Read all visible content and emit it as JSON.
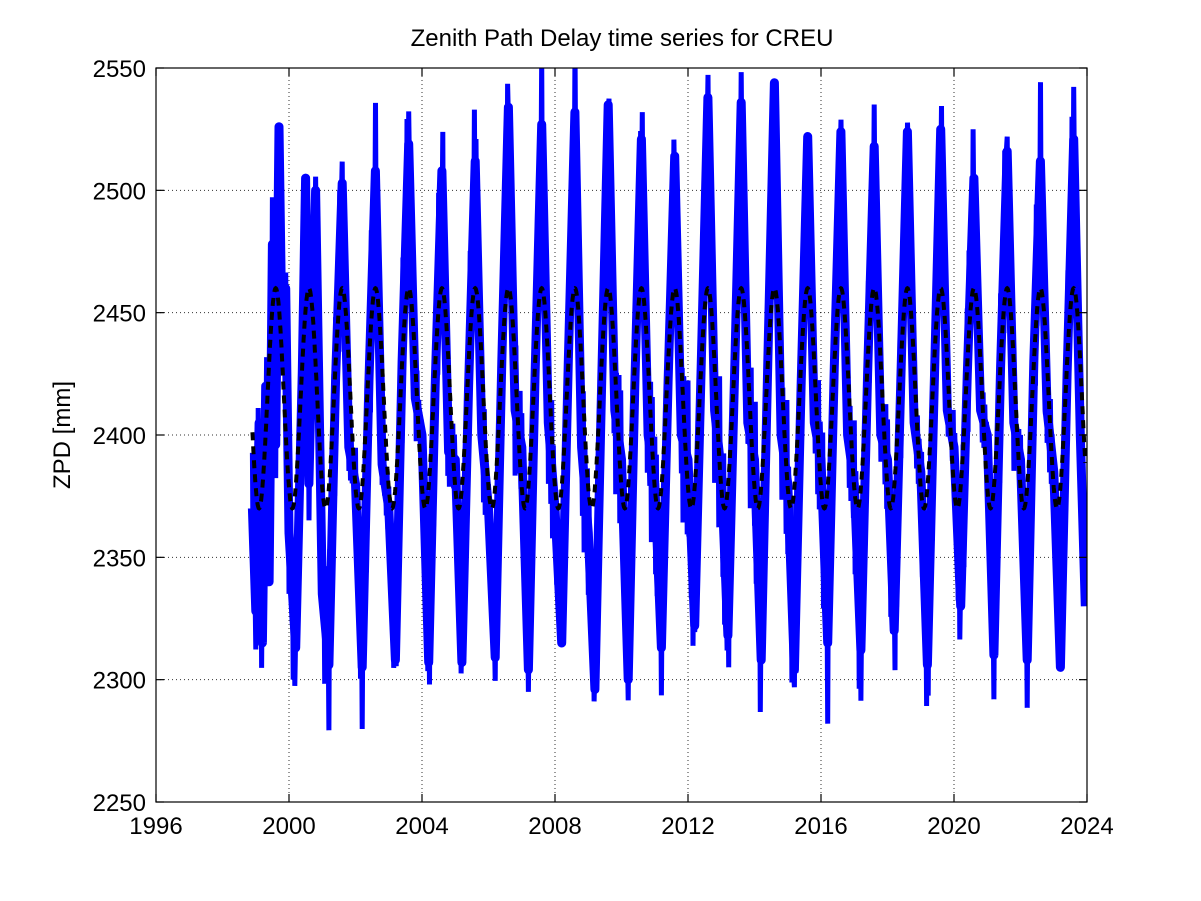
{
  "chart_data": {
    "type": "line",
    "title": "Zenith Path Delay time series for CREU",
    "xlabel": "",
    "ylabel": "ZPD [mm]",
    "xlim": [
      1996,
      2024
    ],
    "ylim": [
      2250,
      2550
    ],
    "xticks": [
      1996,
      2000,
      2004,
      2008,
      2012,
      2016,
      2020,
      2024
    ],
    "yticks": [
      2250,
      2300,
      2350,
      2400,
      2450,
      2500,
      2550
    ],
    "grid": true,
    "colors": {
      "observed": "#0000ff",
      "model": "#000000"
    },
    "series": [
      {
        "style": "solid",
        "color": "#0000ff",
        "x": [
          1998.9,
          1999.0,
          1999.1,
          1999.2,
          1999.3,
          1999.4,
          1999.5,
          1999.6,
          1999.7,
          1999.8,
          1999.9,
          2000.0,
          2000.2,
          2000.4,
          2000.5,
          2000.6,
          2000.8,
          2001.0,
          2001.2,
          2001.4,
          2001.6,
          2001.8,
          2002.0,
          2002.2,
          2002.4,
          2002.6,
          2002.8,
          2003.0,
          2003.2,
          2003.4,
          2003.6,
          2003.8,
          2004.0,
          2004.2,
          2004.4,
          2004.6,
          2004.8,
          2005.0,
          2005.2,
          2005.4,
          2005.6,
          2005.8,
          2006.0,
          2006.2,
          2006.4,
          2006.6,
          2006.8,
          2007.0,
          2007.2,
          2007.4,
          2007.6,
          2007.8,
          2008.0,
          2008.2,
          2008.4,
          2008.6,
          2008.8,
          2009.0,
          2009.2,
          2009.4,
          2009.6,
          2009.8,
          2010.0,
          2010.2,
          2010.4,
          2010.6,
          2010.8,
          2011.0,
          2011.2,
          2011.4,
          2011.6,
          2011.8,
          2012.0,
          2012.2,
          2012.4,
          2012.6,
          2012.8,
          2013.0,
          2013.2,
          2013.4,
          2013.6,
          2013.8,
          2014.0,
          2014.2,
          2014.4,
          2014.6,
          2014.8,
          2015.0,
          2015.2,
          2015.4,
          2015.6,
          2015.8,
          2016.0,
          2016.2,
          2016.4,
          2016.6,
          2016.8,
          2017.0,
          2017.2,
          2017.4,
          2017.6,
          2017.8,
          2018.0,
          2018.2,
          2018.4,
          2018.6,
          2018.8,
          2019.0,
          2019.2,
          2019.4,
          2019.6,
          2019.8,
          2020.0,
          2020.2,
          2020.4,
          2020.6,
          2020.8,
          2021.0,
          2021.2,
          2021.4,
          2021.6,
          2021.8,
          2022.0,
          2022.2,
          2022.4,
          2022.6,
          2022.8,
          2023.0,
          2023.2,
          2023.4,
          2023.6,
          2023.8,
          2023.95
        ],
        "y": [
          2370,
          2328,
          2405,
          2315,
          2420,
          2340,
          2478,
          2396,
          2526,
          2430,
          2460,
          2360,
          2313,
          2426,
          2505,
          2380,
          2500,
          2335,
          2306,
          2423,
          2503,
          2395,
          2380,
          2305,
          2420,
          2508,
          2388,
          2370,
          2308,
          2430,
          2519,
          2415,
          2400,
          2307,
          2422,
          2508,
          2393,
          2390,
          2307,
          2420,
          2512,
          2400,
          2370,
          2309,
          2430,
          2534,
          2410,
          2395,
          2304,
          2425,
          2527,
          2405,
          2370,
          2315,
          2430,
          2532,
          2395,
          2360,
          2296,
          2420,
          2535,
          2410,
          2390,
          2300,
          2420,
          2521,
          2400,
          2380,
          2313,
          2422,
          2514,
          2400,
          2390,
          2322,
          2430,
          2538,
          2410,
          2385,
          2318,
          2425,
          2536,
          2405,
          2390,
          2308,
          2430,
          2544,
          2400,
          2380,
          2304,
          2420,
          2522,
          2405,
          2390,
          2315,
          2428,
          2524,
          2400,
          2380,
          2312,
          2425,
          2518,
          2400,
          2390,
          2320,
          2422,
          2524,
          2405,
          2385,
          2306,
          2418,
          2525,
          2410,
          2395,
          2330,
          2425,
          2505,
          2410,
          2400,
          2310,
          2428,
          2516,
          2405,
          2390,
          2308,
          2430,
          2512,
          2410,
          2385,
          2305,
          2425,
          2521,
          2400,
          2330
        ]
      },
      {
        "style": "dashed",
        "color": "#000000",
        "annual_fit": {
          "mean": 2415,
          "amplitude": 45,
          "period_years": 1,
          "peak_phase_years": 0.6
        },
        "x_range": [
          1998.9,
          2023.95
        ]
      }
    ]
  }
}
